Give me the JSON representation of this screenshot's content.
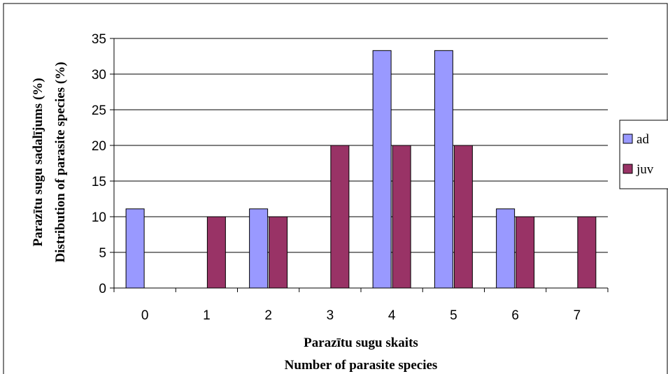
{
  "colors": {
    "ad": "#9999ff",
    "juv": "#993366",
    "gridline": "#000000",
    "plot_background": "#ffffff"
  },
  "chart_data": {
    "type": "bar",
    "categories": [
      "0",
      "1",
      "2",
      "3",
      "4",
      "5",
      "6",
      "7"
    ],
    "series": [
      {
        "name": "ad",
        "values": [
          11.1,
          0,
          11.1,
          0,
          33.3,
          33.3,
          11.1,
          0
        ]
      },
      {
        "name": "juv",
        "values": [
          0,
          10,
          10,
          20,
          20,
          20,
          10,
          10
        ]
      }
    ],
    "xlabel": [
      "Parazītu sugu skaits",
      "Number of parasite species"
    ],
    "ylabel": [
      "Parazītu sugu sadalījums (%)",
      "Distribution of parasite species (%)"
    ],
    "ylim": [
      0,
      35
    ],
    "yticks": [
      "0",
      "5",
      "10",
      "15",
      "20",
      "25",
      "30",
      "35"
    ],
    "grid": true,
    "legend_position": "right"
  }
}
